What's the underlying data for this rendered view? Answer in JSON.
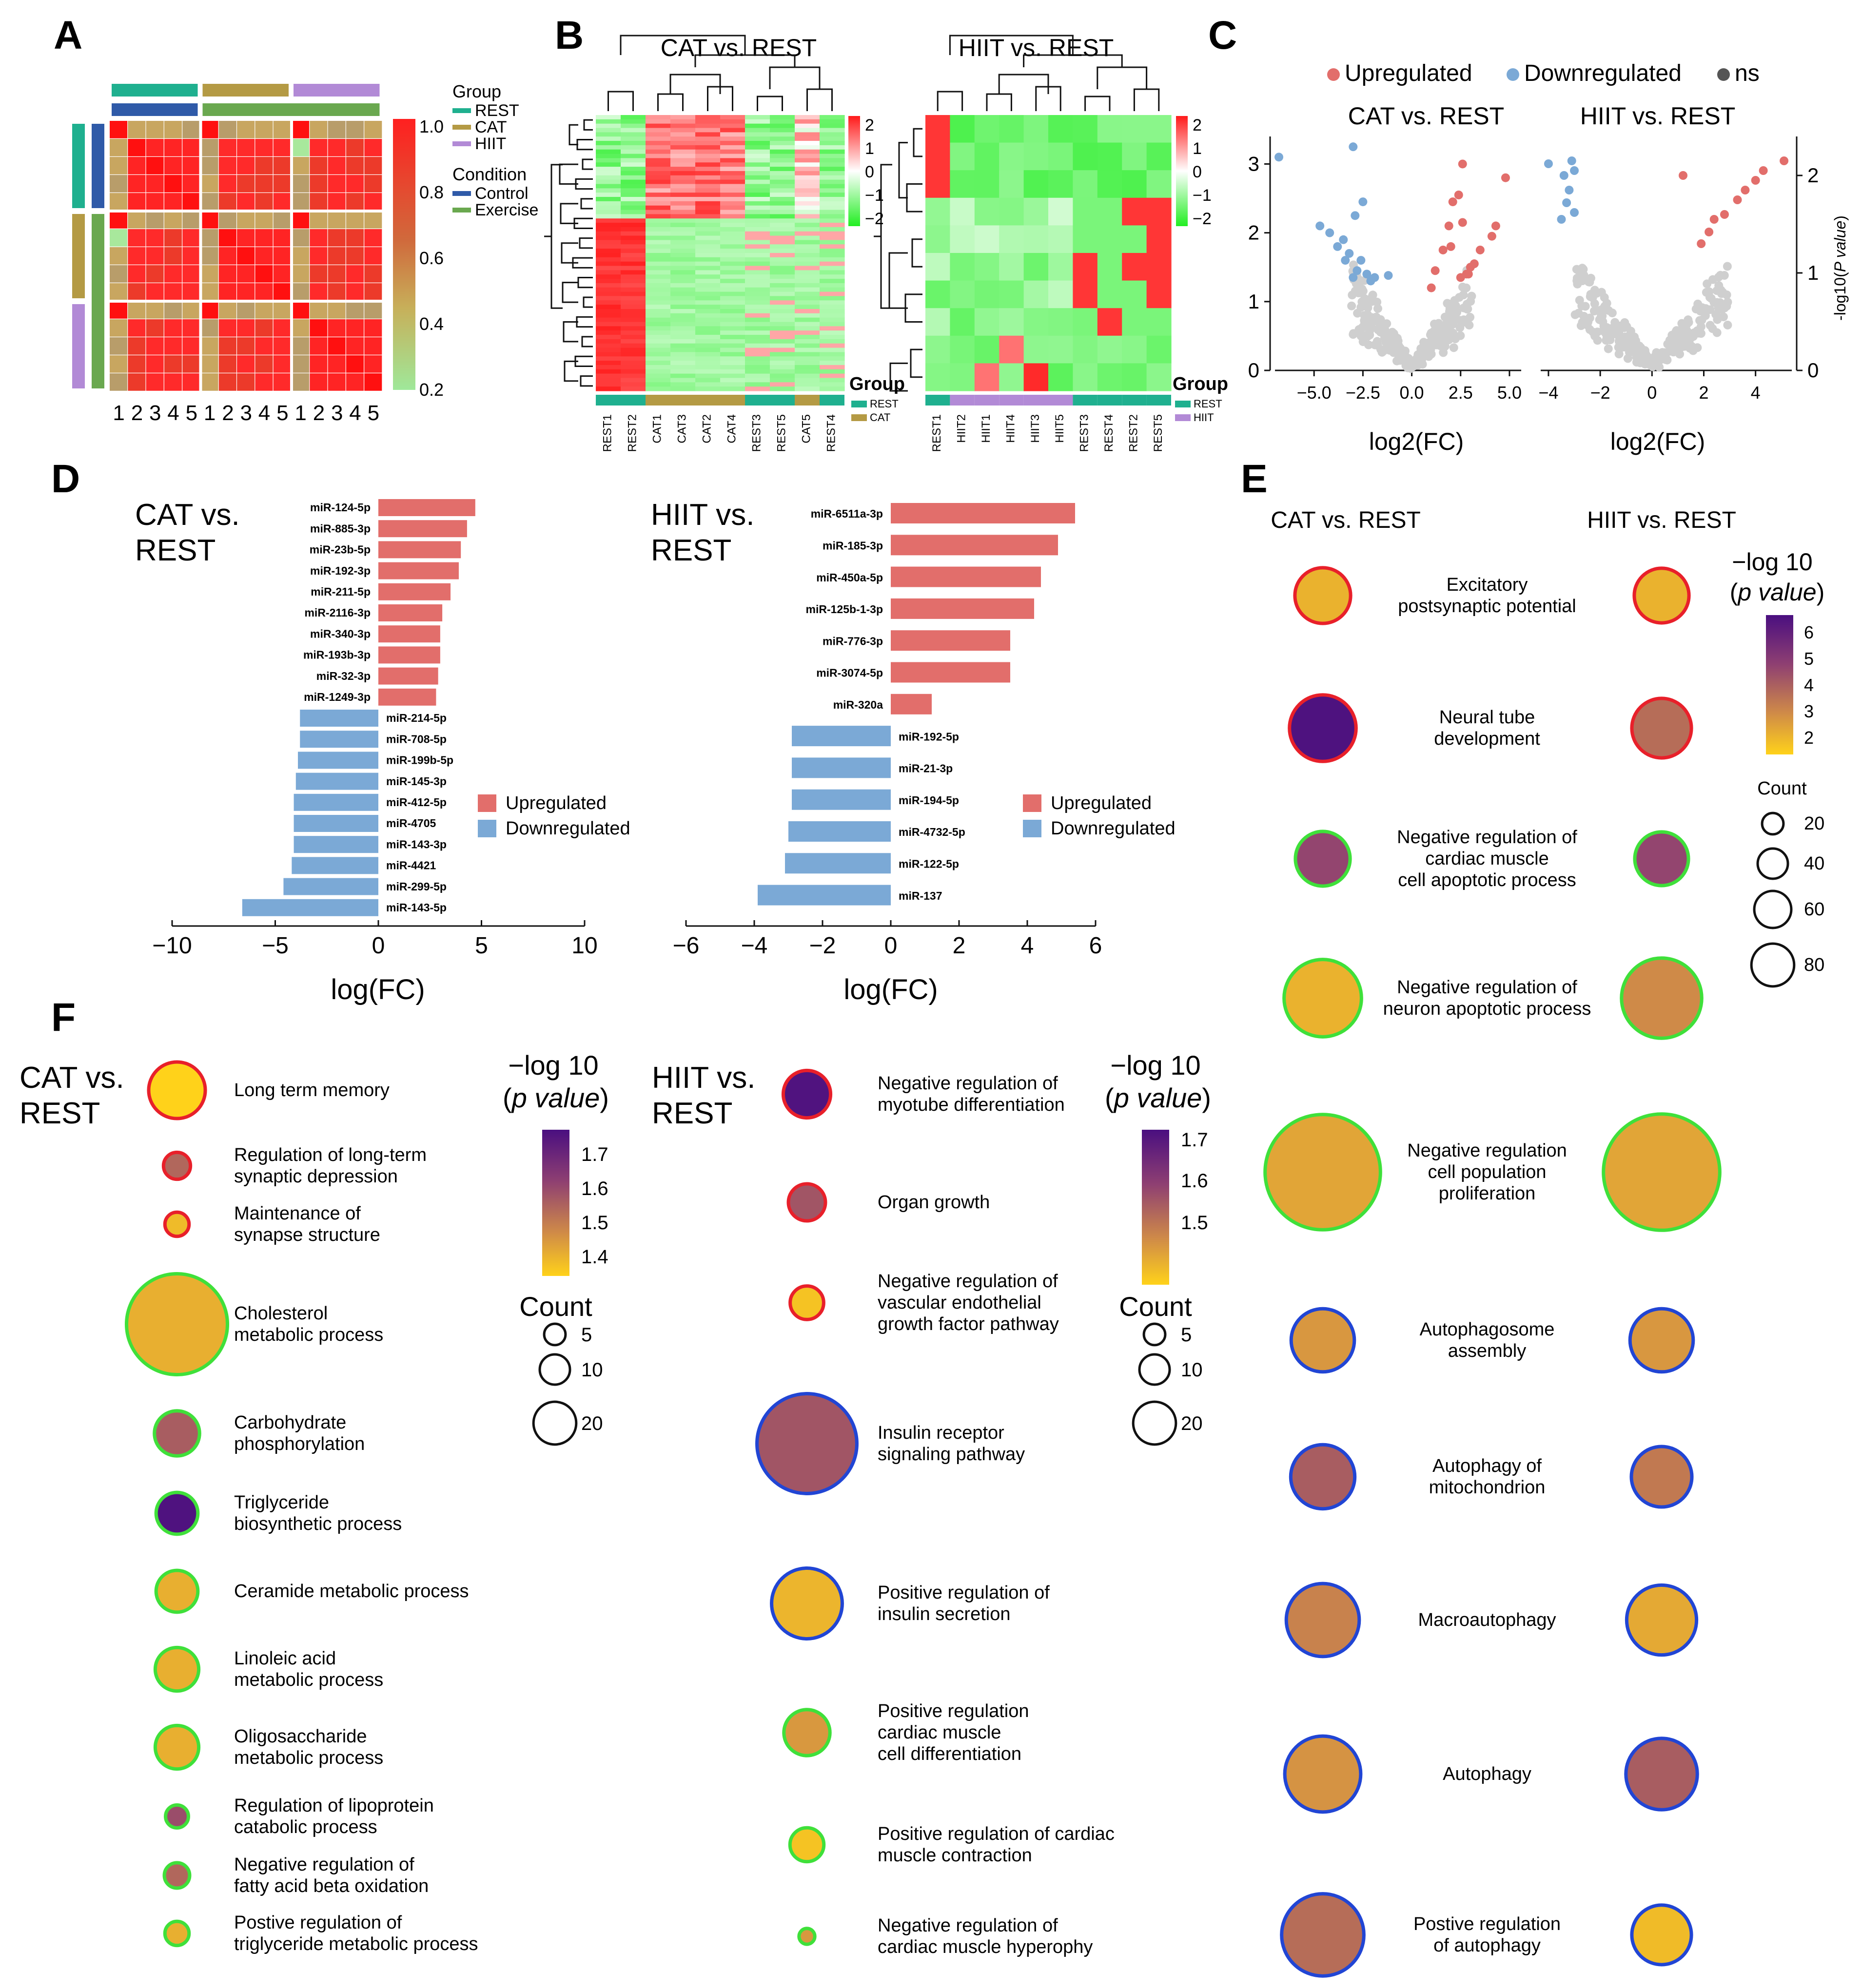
{
  "panels": {
    "A": "A",
    "B": "B",
    "C": "C",
    "D": "D",
    "E": "E",
    "F": "F"
  },
  "colors": {
    "up": "#e26e6b",
    "down": "#7ba9d6",
    "ns": "#cfcfcf",
    "ns_legend": "#555555",
    "rest": "#1fb08f",
    "cat": "#b49a44",
    "hiit": "#b28ad6",
    "control": "#2f5aa8",
    "exercise": "#6aa84f",
    "ring_red": "#e8202a",
    "ring_green": "#3fe03a",
    "ring_blue": "#2145d4"
  },
  "panelA": {
    "legend_group_title": "Group",
    "groups": [
      "REST",
      "CAT",
      "HIIT"
    ],
    "legend_condition_title": "Condition",
    "conditions": [
      "Control",
      "Exercise"
    ],
    "colorbar_ticks": [
      "1.0",
      "0.8",
      "0.6",
      "0.4",
      "0.2"
    ],
    "xticks": [
      "1",
      "2",
      "3",
      "4",
      "5",
      "1",
      "2",
      "3",
      "4",
      "5",
      "1",
      "2",
      "3",
      "4",
      "5"
    ]
  },
  "panelB": {
    "left": {
      "title": "CAT vs. REST",
      "samples": [
        "REST1",
        "REST2",
        "CAT1",
        "CAT3",
        "CAT2",
        "CAT4",
        "REST3",
        "REST5",
        "CAT5",
        "REST4"
      ],
      "sample_groups": [
        "REST",
        "REST",
        "CAT",
        "CAT",
        "CAT",
        "CAT",
        "REST",
        "REST",
        "CAT",
        "REST"
      ],
      "legend_title": "Group",
      "legend": [
        "REST",
        "CAT"
      ]
    },
    "right": {
      "title": "HIIT vs. REST",
      "samples": [
        "REST1",
        "HIIT2",
        "HIIT1",
        "HIIT4",
        "HIIT3",
        "HIIT5",
        "REST3",
        "REST4",
        "REST2",
        "REST5"
      ],
      "sample_groups": [
        "REST",
        "HIIT",
        "HIIT",
        "HIIT",
        "HIIT",
        "HIIT",
        "REST",
        "REST",
        "REST",
        "REST"
      ],
      "legend_title": "Group",
      "legend": [
        "REST",
        "HIIT"
      ]
    },
    "colorbar_ticks": [
      "2",
      "1",
      "0",
      "−1",
      "−2"
    ]
  },
  "panelC": {
    "legend": [
      "Upregulated",
      "Downregulated",
      "ns"
    ],
    "left": {
      "title": "CAT vs. REST",
      "xlabel": "log2(FC)",
      "xticks": [
        "−5.0",
        "−2.5",
        "0.0",
        "2.5",
        "5.0"
      ],
      "yticks": [
        "0",
        "1",
        "2",
        "3"
      ]
    },
    "right": {
      "title": "HIIT vs. REST",
      "xlabel": "log2(FC)",
      "xticks": [
        "−4",
        "−2",
        "0",
        "2",
        "4"
      ],
      "yticks": [
        "0",
        "1",
        "2"
      ],
      "ylabel_prefix": "-log10(",
      "ylabel_italic": "P value",
      "ylabel_suffix": ")"
    }
  },
  "chart_data": [
    {
      "type": "bar",
      "id": "D-CAT",
      "title_line1": "CAT vs.",
      "title_line2": "REST",
      "xlabel": "log(FC)",
      "xlim": [
        -10,
        10
      ],
      "xticks": [
        "−10",
        "−5",
        "0",
        "5",
        "10"
      ],
      "categories": [
        "miR-124-5p",
        "miR-885-3p",
        "miR-23b-5p",
        "miR-192-3p",
        "miR-211-5p",
        "miR-2116-3p",
        "miR-340-3p",
        "miR-193b-3p",
        "miR-32-3p",
        "miR-1249-3p",
        "miR-214-5p",
        "miR-708-5p",
        "miR-199b-5p",
        "miR-145-3p",
        "miR-412-5p",
        "miR-4705",
        "miR-143-3p",
        "miR-4421",
        "miR-299-5p",
        "miR-143-5p"
      ],
      "values": [
        4.7,
        4.3,
        4.0,
        3.9,
        3.5,
        3.1,
        3.0,
        3.0,
        2.9,
        2.8,
        -3.8,
        -3.8,
        -3.9,
        -4.0,
        -4.1,
        -4.1,
        -4.1,
        -4.2,
        -4.6,
        -6.6
      ],
      "legend": [
        "Upregulated",
        "Downregulated"
      ]
    },
    {
      "type": "bar",
      "id": "D-HIIT",
      "title_line1": "HIIT vs.",
      "title_line2": "REST",
      "xlabel": "log(FC)",
      "xlim": [
        -6,
        6
      ],
      "xticks": [
        "−6",
        "−4",
        "−2",
        "0",
        "2",
        "4",
        "6"
      ],
      "categories": [
        "miR-6511a-3p",
        "miR-185-3p",
        "miR-450a-5p",
        "miR-125b-1-3p",
        "miR-776-3p",
        "miR-3074-5p",
        "miR-320a",
        "miR-192-5p",
        "miR-21-3p",
        "miR-194-5p",
        "miR-4732-5p",
        "miR-122-5p",
        "miR-137"
      ],
      "values": [
        5.4,
        4.9,
        4.4,
        4.2,
        3.5,
        3.5,
        1.2,
        -2.9,
        -2.9,
        -2.9,
        -3.0,
        -3.1,
        -3.9
      ],
      "legend": [
        "Upregulated",
        "Downregulated"
      ]
    },
    {
      "type": "scatter",
      "id": "E",
      "col_titles": [
        "CAT vs. REST",
        "HIIT vs. REST"
      ],
      "legend_title_prefix": "−log 10",
      "legend_title_italic": "p value",
      "colorbar_ticks": [
        "6",
        "5",
        "4",
        "3",
        "2"
      ],
      "colorbar_range": [
        1.3,
        6.6
      ],
      "size_title": "Count",
      "size_ticks": [
        "20",
        "40",
        "60",
        "80"
      ],
      "size_values": [
        20,
        40,
        60,
        80
      ],
      "terms": [
        {
          "label": [
            "Excitatory",
            "postsynaptic potential"
          ],
          "ring": "red",
          "cat": [
            2,
            28
          ],
          "hiit": [
            2,
            27
          ]
        },
        {
          "label": [
            "Neural tube",
            "development"
          ],
          "ring": "red",
          "cat": [
            6.5,
            40
          ],
          "hiit": [
            3.6,
            32
          ]
        },
        {
          "label": [
            "Negative regulation of",
            "cardiac muscle",
            "cell apoptotic process"
          ],
          "ring": "green",
          "cat": [
            4.6,
            27
          ],
          "hiit": [
            4.6,
            26
          ]
        },
        {
          "label": [
            "Negative regulation of",
            "neuron apoptotic process"
          ],
          "ring": "green",
          "cat": [
            2,
            54
          ],
          "hiit": [
            2.9,
            58
          ]
        },
        {
          "label": [
            "Negative regulation",
            "cell population",
            "proliferation"
          ],
          "ring": "green",
          "cat": [
            2.3,
            120
          ],
          "hiit": [
            2.3,
            122
          ]
        },
        {
          "label": [
            "Autophagosome",
            "assembly"
          ],
          "ring": "blue",
          "cat": [
            2.6,
            36
          ],
          "hiit": [
            2.6,
            36
          ]
        },
        {
          "label": [
            "Autophagy of",
            "mitochondrion"
          ],
          "ring": "blue",
          "cat": [
            4.0,
            37
          ],
          "hiit": [
            3.3,
            33
          ]
        },
        {
          "label": [
            "Macroautophagy"
          ],
          "ring": "blue",
          "cat": [
            3.1,
            48
          ],
          "hiit": [
            2.2,
            44
          ]
        },
        {
          "label": [
            "Autophagy"
          ],
          "ring": "blue",
          "cat": [
            2.7,
            52
          ],
          "hiit": [
            4.0,
            46
          ]
        },
        {
          "label": [
            "Postive regulation",
            "of autophagy"
          ],
          "ring": "blue",
          "cat": [
            3.6,
            61
          ],
          "hiit": [
            1.8,
            32
          ]
        }
      ]
    },
    {
      "type": "scatter",
      "id": "F-CAT",
      "title_line1": "CAT vs.",
      "title_line2": "REST",
      "legend_title_prefix": "−log 10",
      "legend_title_italic": "p value",
      "colorbar_ticks": [
        "1.7",
        "1.6",
        "1.5",
        "1.4"
      ],
      "colorbar_range": [
        1.36,
        1.77
      ],
      "size_title": "Count",
      "size_ticks": [
        "5",
        "10",
        "20"
      ],
      "size_values": [
        5,
        10,
        20
      ],
      "terms": [
        {
          "label": [
            "Long term memory"
          ],
          "ring": "red",
          "p": 1.36,
          "count": 11
        },
        {
          "label": [
            "Regulation of long-term",
            "synaptic depression"
          ],
          "ring": "red",
          "p": 1.55,
          "count": 2.5
        },
        {
          "label": [
            "Maintenance of",
            "synapse structure"
          ],
          "ring": "red",
          "p": 1.4,
          "count": 2
        },
        {
          "label": [
            "Cholesterol",
            "metabolic process"
          ],
          "ring": "green",
          "p": 1.42,
          "count": 35
        },
        {
          "label": [
            "Carbohydrate",
            "phosphorylation"
          ],
          "ring": "green",
          "p": 1.57,
          "count": 7
        },
        {
          "label": [
            "Triglyceride",
            "biosynthetic process"
          ],
          "ring": "green",
          "p": 1.76,
          "count": 6
        },
        {
          "label": [
            "Ceramide metabolic process"
          ],
          "ring": "green",
          "p": 1.42,
          "count": 6
        },
        {
          "label": [
            "Linoleic acid",
            "metabolic process"
          ],
          "ring": "green",
          "p": 1.42,
          "count": 6.5
        },
        {
          "label": [
            "Oligosaccharide",
            "metabolic process"
          ],
          "ring": "green",
          "p": 1.42,
          "count": 6.5
        },
        {
          "label": [
            "Regulation of lipoprotein",
            "catabolic process"
          ],
          "ring": "green",
          "p": 1.6,
          "count": 1.8
        },
        {
          "label": [
            "Negative regulation of",
            "fatty acid beta oxidation"
          ],
          "ring": "green",
          "p": 1.55,
          "count": 2.2
        },
        {
          "label": [
            "Postive regulation of",
            "triglyceride metabolic process"
          ],
          "ring": "green",
          "p": 1.42,
          "count": 2
        }
      ]
    },
    {
      "type": "scatter",
      "id": "F-HIIT",
      "title_line1": "HIIT vs.",
      "title_line2": "REST",
      "legend_title_prefix": "−log 10",
      "legend_title_italic": "p value",
      "colorbar_ticks": [
        "1.7",
        "1.6",
        "1.5"
      ],
      "colorbar_range": [
        1.42,
        1.75
      ],
      "size_title": "Count",
      "size_ticks": [
        "5",
        "10",
        "20"
      ],
      "size_values": [
        5,
        10,
        20
      ],
      "terms": [
        {
          "label": [
            "Negative regulation of",
            "myotube differentiation"
          ],
          "ring": "red",
          "p": 1.74,
          "count": 9
        },
        {
          "label": [
            "Organ growth"
          ],
          "ring": "red",
          "p": 1.6,
          "count": 5.5
        },
        {
          "label": [
            "Negative regulation of",
            "vascular endothelial",
            "growth factor pathway"
          ],
          "ring": "red",
          "p": 1.44,
          "count": 4.5
        },
        {
          "label": [
            "Insulin receptor",
            "signaling pathway"
          ],
          "ring": "blue",
          "p": 1.6,
          "count": 40
        },
        {
          "label": [
            "Positive regulation of",
            "insulin secretion"
          ],
          "ring": "blue",
          "p": 1.46,
          "count": 20
        },
        {
          "label": [
            "Positive regulation",
            "cardiac muscle",
            "cell differentiation"
          ],
          "ring": "green",
          "p": 1.5,
          "count": 8.5
        },
        {
          "label": [
            "Positive regulation of cardiac",
            "muscle contraction"
          ],
          "ring": "green",
          "p": 1.44,
          "count": 4.6
        },
        {
          "label": [
            "Negative regulation of",
            "cardiac muscle hyperophy"
          ],
          "ring": "green",
          "p": 1.5,
          "count": 1
        }
      ]
    }
  ]
}
